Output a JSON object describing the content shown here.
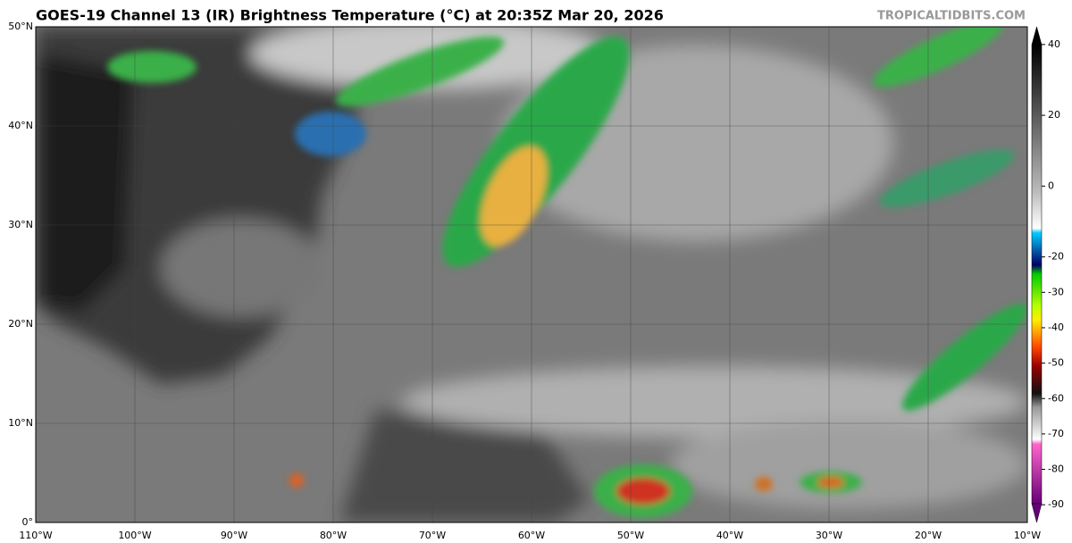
{
  "header": {
    "title": "GOES-19 Channel 13 (IR) Brightness Temperature (°C) at 20:35Z Mar 20, 2026",
    "site": "TROPICALTIDBITS.COM"
  },
  "map": {
    "lat_labels": [
      "50°N",
      "40°N",
      "30°N",
      "20°N",
      "10°N",
      "0°"
    ],
    "lon_labels": [
      "110°W",
      "100°W",
      "90°W",
      "80°W",
      "70°W",
      "60°W",
      "50°W",
      "40°W",
      "30°W",
      "20°W",
      "10°W"
    ]
  },
  "colorbar": {
    "range": [
      -95,
      45
    ],
    "ticks": [
      40,
      20,
      0,
      -20,
      -30,
      -40,
      -50,
      -60,
      -70,
      -80,
      -90
    ]
  }
}
